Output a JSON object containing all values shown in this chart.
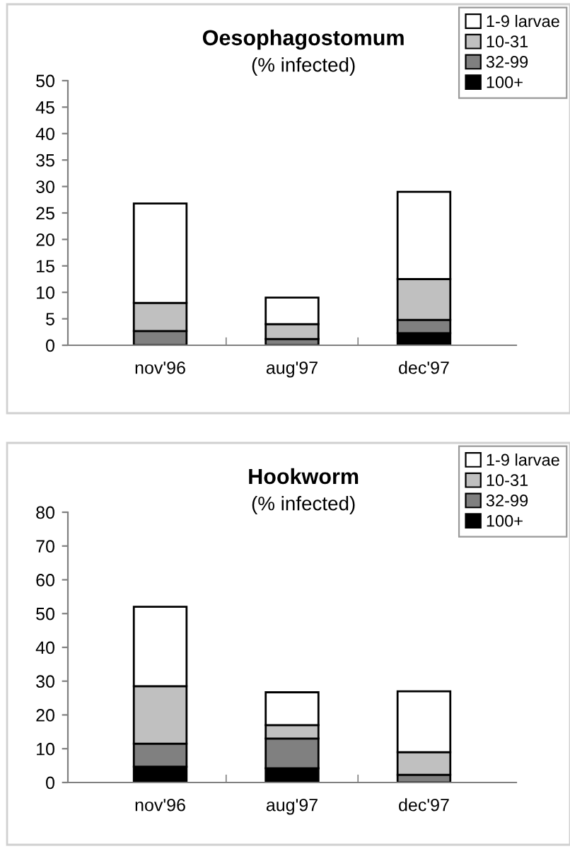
{
  "chart_data": [
    {
      "type": "bar",
      "stacked": true,
      "title": "Oesophagostomum",
      "subtitle": "(% infected)",
      "categories": [
        "nov'96",
        "aug'97",
        "dec'97"
      ],
      "series": [
        {
          "name": "100+",
          "color": "#000000",
          "values": [
            0,
            0,
            2.3
          ]
        },
        {
          "name": "32-99",
          "color": "#808080",
          "values": [
            2.7,
            1.2,
            2.5
          ]
        },
        {
          "name": "10-31",
          "color": "#c0c0c0",
          "values": [
            5.3,
            2.8,
            7.7
          ]
        },
        {
          "name": "1-9 larvae",
          "color": "#ffffff",
          "values": [
            18.8,
            5,
            16.5
          ]
        }
      ],
      "ylim": [
        0,
        50
      ],
      "yticks": [
        0,
        5,
        10,
        15,
        20,
        25,
        30,
        35,
        40,
        45,
        50
      ],
      "grid": false,
      "legend": "top right"
    },
    {
      "type": "bar",
      "stacked": true,
      "title": "Hookworm",
      "subtitle": "(% infected)",
      "categories": [
        "nov'96",
        "aug'97",
        "dec'97"
      ],
      "series": [
        {
          "name": "100+",
          "color": "#000000",
          "values": [
            4.7,
            4.2,
            0
          ]
        },
        {
          "name": "32-99",
          "color": "#808080",
          "values": [
            6.8,
            8.8,
            2.3
          ]
        },
        {
          "name": "10-31",
          "color": "#c0c0c0",
          "values": [
            17,
            4,
            6.7
          ]
        },
        {
          "name": "1-9 larvae",
          "color": "#ffffff",
          "values": [
            23.5,
            9.7,
            18
          ]
        }
      ],
      "ylim": [
        0,
        80
      ],
      "yticks": [
        0,
        10,
        20,
        30,
        40,
        50,
        60,
        70,
        80
      ],
      "grid": false,
      "legend": "top right"
    }
  ]
}
